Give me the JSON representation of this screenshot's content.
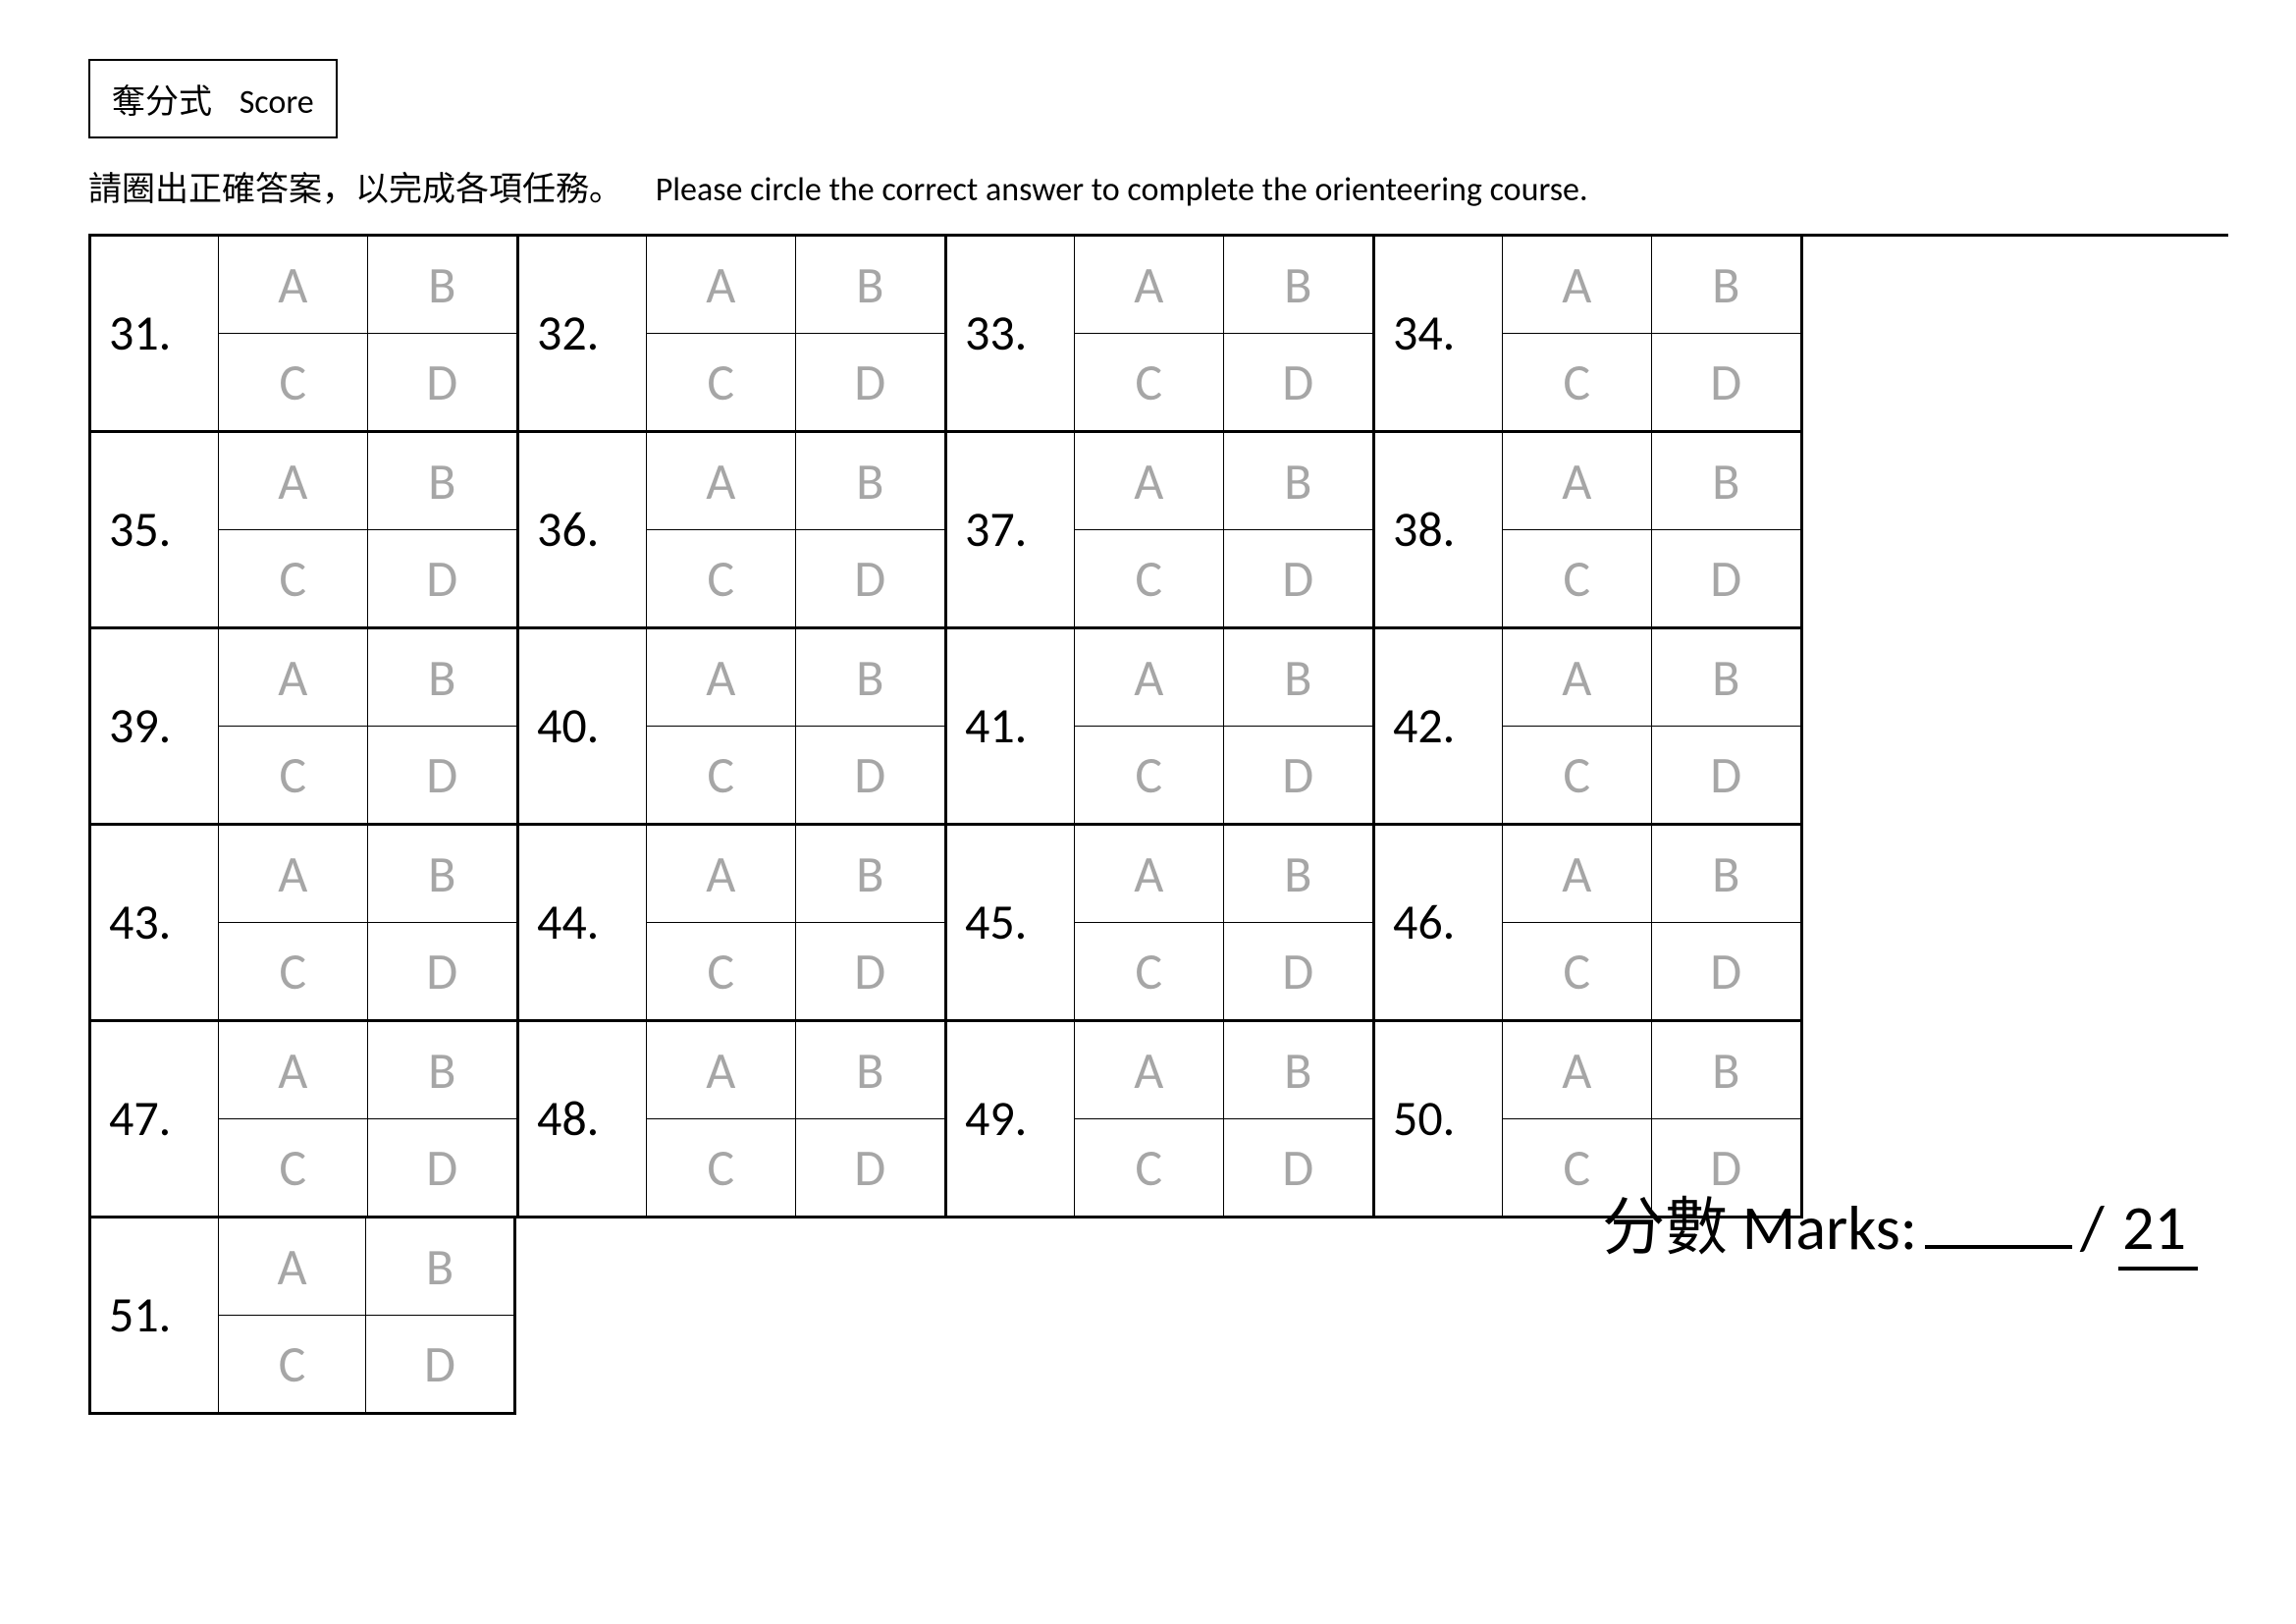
{
  "header": {
    "score_box_zh": "奪分式",
    "score_box_en": "Score"
  },
  "instruction": {
    "zh": "請圈出正確答案，以完成各項任務。",
    "en": "Please circle the correct answer to complete the orienteering course."
  },
  "options": {
    "a": "A",
    "b": "B",
    "c": "C",
    "d": "D"
  },
  "questions": [
    "31.",
    "32.",
    "33.",
    "34.",
    "35.",
    "36.",
    "37.",
    "38.",
    "39.",
    "40.",
    "41.",
    "42.",
    "43.",
    "44.",
    "45.",
    "46.",
    "47.",
    "48.",
    "49.",
    "50.",
    "51."
  ],
  "marks": {
    "label_zh": "分數",
    "label_en": "Marks:",
    "slash": "/",
    "total": "21"
  },
  "colors": {
    "text": "#000000",
    "option_text": "#a6a6a6",
    "background": "#ffffff",
    "border": "#000000"
  }
}
